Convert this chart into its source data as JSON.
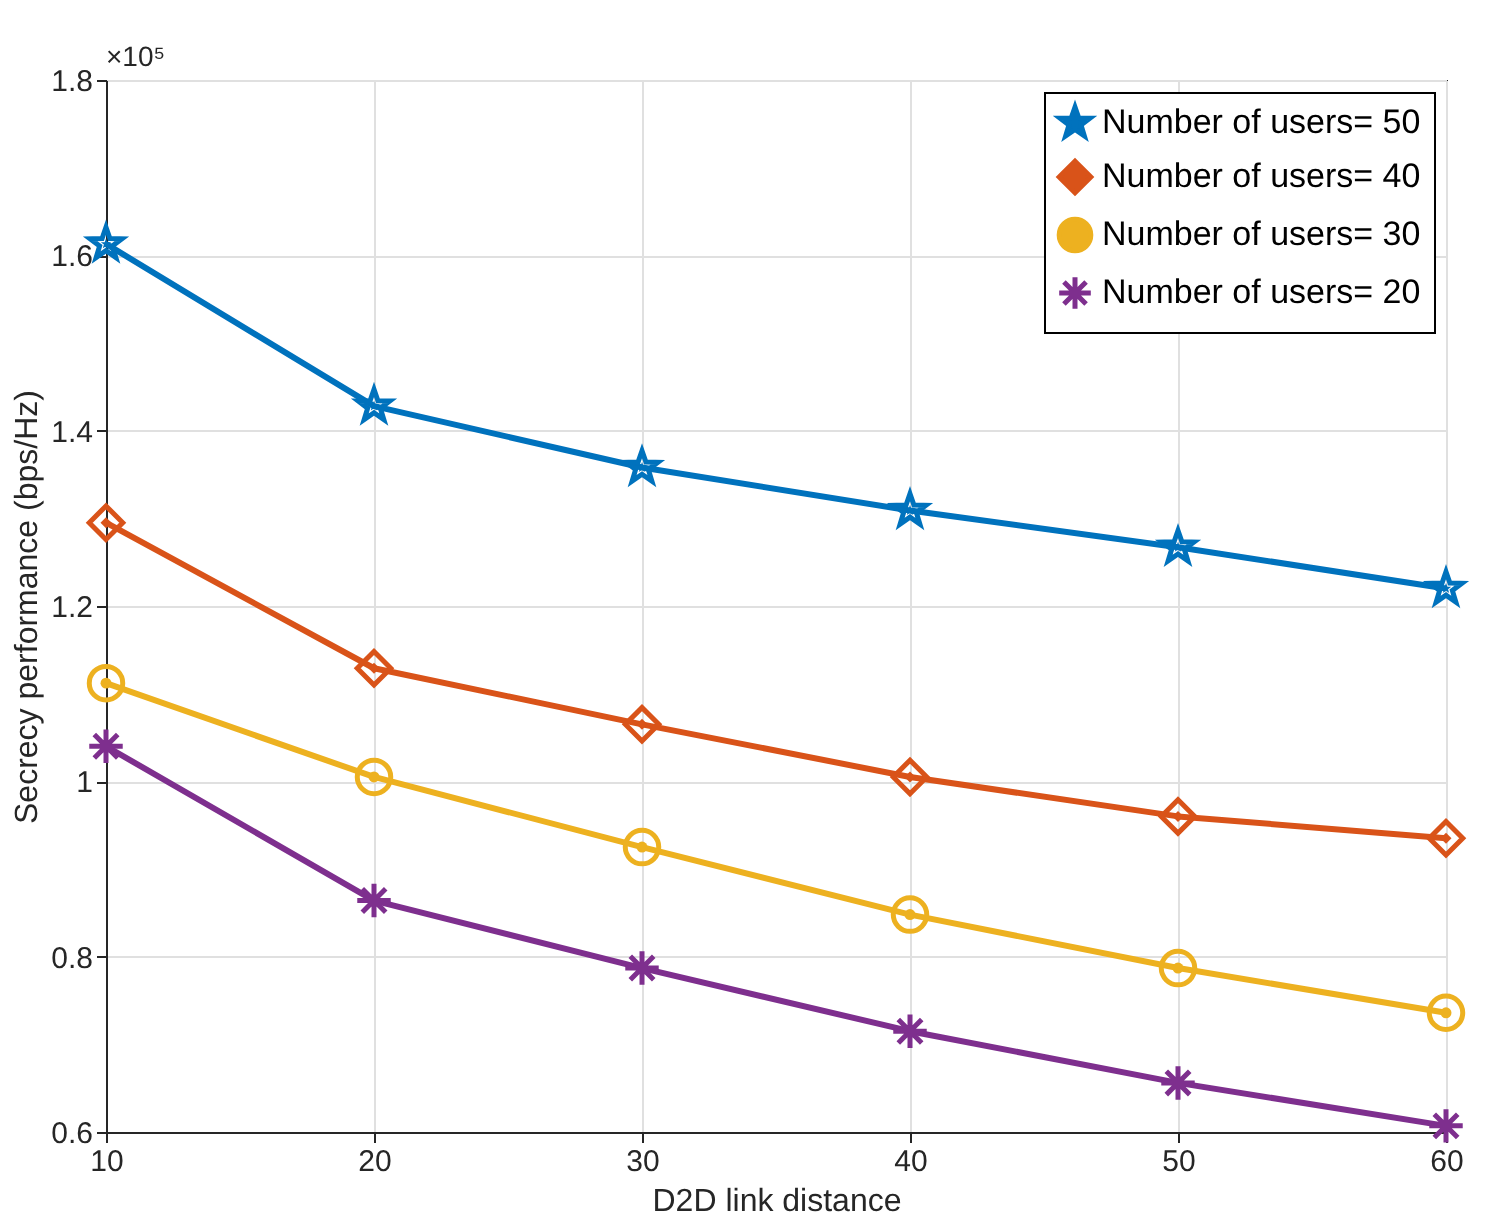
{
  "chart_data": {
    "type": "line",
    "xlabel": "D2D link distance",
    "ylabel": "Secrecy performance (bps/Hz)",
    "annotations": [
      "×10⁵"
    ],
    "x": [
      10,
      20,
      30,
      40,
      50,
      60
    ],
    "series": [
      {
        "name": "Number of users= 50",
        "color": "#0072bd",
        "marker": "star",
        "values": [
          1.613,
          1.428,
          1.358,
          1.309,
          1.267,
          1.22
        ]
      },
      {
        "name": "Number of users= 40",
        "color": "#d95319",
        "marker": "diamond",
        "values": [
          1.295,
          1.129,
          1.065,
          1.005,
          0.96,
          0.935
        ]
      },
      {
        "name": "Number of users= 30",
        "color": "#edb120",
        "marker": "circle",
        "values": [
          1.112,
          1.005,
          0.925,
          0.848,
          0.787,
          0.736
        ]
      },
      {
        "name": "Number of users= 20",
        "color": "#7e2f8e",
        "marker": "cross",
        "values": [
          1.04,
          0.864,
          0.787,
          0.715,
          0.656,
          0.607
        ]
      }
    ],
    "xlim": [
      10,
      60
    ],
    "xticks": [
      10,
      20,
      30,
      40,
      50,
      60
    ],
    "ylim": [
      0.6,
      1.8
    ],
    "yticks": [
      0.6,
      0.8,
      {
        "value": 1,
        "label": "1"
      },
      1.2,
      1.4,
      1.6,
      1.8
    ],
    "grid": true,
    "legend": "top right",
    "line_style": "solid"
  }
}
